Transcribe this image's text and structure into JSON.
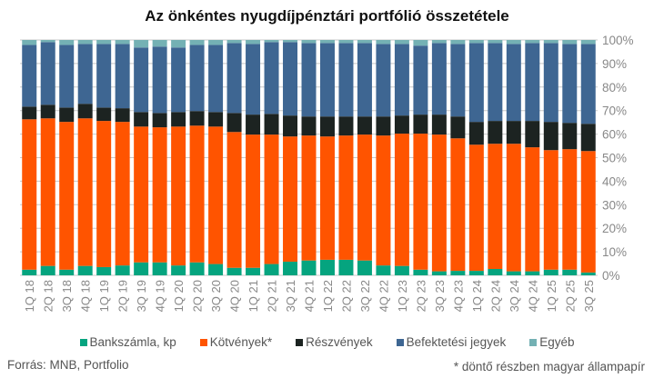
{
  "chart_data": {
    "type": "bar",
    "stacked": true,
    "title": "Az önkéntes nyugdíjpénztári portfólió összetétele",
    "xlabel": "",
    "ylabel": "",
    "ylim": [
      0,
      100
    ],
    "yticks": [
      "0%",
      "10%",
      "20%",
      "30%",
      "40%",
      "50%",
      "60%",
      "70%",
      "80%",
      "90%",
      "100%"
    ],
    "grid": true,
    "legend_position": "bottom",
    "categories": [
      "1Q 18",
      "2Q 18",
      "3Q 18",
      "4Q 18",
      "1Q 19",
      "2Q 19",
      "3Q 19",
      "4Q 19",
      "1Q 20",
      "2Q 20",
      "3Q 20",
      "4Q 20",
      "1Q 21",
      "2Q 21",
      "3Q 21",
      "4Q 21",
      "1Q 22",
      "2Q 22",
      "3Q 22",
      "4Q 22",
      "1Q 23",
      "2Q 23",
      "3Q 23",
      "4Q 23",
      "1Q 24",
      "2Q 24",
      "3Q 24",
      "4Q 24",
      "1Q 25",
      "2Q 25",
      "3Q 25"
    ],
    "series": [
      {
        "name": "Bankszámla, kp",
        "color": "#05a47f",
        "values": [
          2.4,
          4.0,
          2.4,
          4.0,
          3.5,
          4.2,
          5.5,
          5.5,
          4.2,
          5.5,
          4.8,
          3.2,
          3.2,
          4.8,
          5.8,
          6.3,
          6.6,
          6.6,
          6.3,
          4.2,
          4.0,
          2.4,
          1.7,
          1.9,
          1.9,
          2.7,
          1.7,
          1.7,
          2.4,
          2.4,
          1.2
        ]
      },
      {
        "name": "Kötvények*",
        "color": "#ff5400",
        "values": [
          63.9,
          62.7,
          62.8,
          62.7,
          62.1,
          61.0,
          57.7,
          57.4,
          59.0,
          58.1,
          58.4,
          57.7,
          56.6,
          55.0,
          53.2,
          53.1,
          52.4,
          52.8,
          53.5,
          55.2,
          56.2,
          57.8,
          58.1,
          56.3,
          53.6,
          53.2,
          54.2,
          52.7,
          50.8,
          51.2,
          51.6
        ]
      },
      {
        "name": "Részvények",
        "color": "#1c2321",
        "values": [
          5.4,
          5.8,
          6.1,
          6.2,
          5.7,
          5.8,
          6.2,
          6.1,
          6.2,
          6.2,
          6.2,
          8.1,
          8.5,
          8.8,
          8.9,
          8.1,
          8.5,
          8.1,
          7.7,
          8.1,
          7.7,
          8.1,
          8.5,
          9.3,
          9.7,
          9.7,
          9.7,
          11.2,
          12.0,
          11.2,
          11.6
        ]
      },
      {
        "name": "Befektetési jegyek",
        "color": "#3e6692",
        "values": [
          26.2,
          26.6,
          26.6,
          25.4,
          27.0,
          27.3,
          27.4,
          28.2,
          27.4,
          28.1,
          28.5,
          29.7,
          30.0,
          30.5,
          31.2,
          31.2,
          31.2,
          31.2,
          31.2,
          30.8,
          30.4,
          29.3,
          30.4,
          30.8,
          33.5,
          33.1,
          32.7,
          33.1,
          33.5,
          33.5,
          33.9
        ]
      },
      {
        "name": "Egyéb",
        "color": "#74b1b4",
        "values": [
          2.1,
          0.9,
          2.1,
          1.7,
          1.7,
          1.7,
          3.2,
          2.8,
          3.2,
          2.1,
          2.1,
          1.3,
          1.7,
          0.9,
          0.9,
          1.3,
          1.3,
          1.3,
          1.3,
          1.7,
          1.7,
          2.4,
          1.3,
          1.7,
          1.3,
          1.3,
          1.7,
          1.3,
          1.3,
          1.7,
          1.7
        ]
      }
    ]
  },
  "footer": {
    "source": "Forrás: MNB, Portfolio",
    "note": "* döntő részben magyar állampapír"
  }
}
